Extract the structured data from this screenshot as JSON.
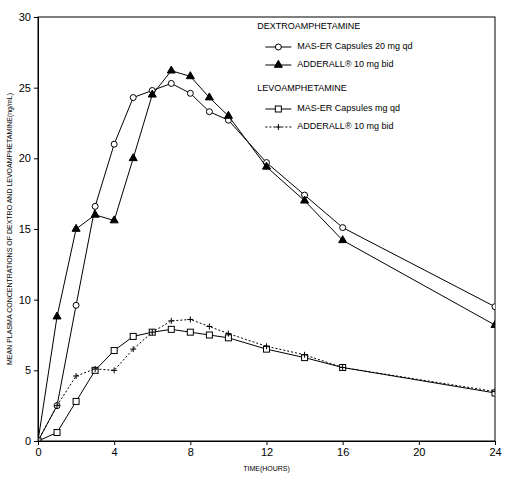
{
  "chart_data": {
    "type": "line",
    "x_label": "TIME(HOURS)",
    "y_label": "MEAN PLASMA CONCENTRATIONS OF DEXTRO AND LEVOAMPHETAMINE(ng/mL)",
    "x": [
      0,
      1,
      2,
      3,
      4,
      5,
      6,
      7,
      8,
      9,
      10,
      12,
      14,
      16,
      24
    ],
    "xlim": [
      0,
      24
    ],
    "xticks": [
      0,
      4,
      8,
      12,
      16,
      20,
      24
    ],
    "ylim": [
      0,
      30
    ],
    "yticks": [
      0,
      5,
      10,
      15,
      20,
      25,
      30
    ],
    "grid": false,
    "legend": "top-right",
    "series": [
      {
        "name": "MAS-ER Capsules 20 mg qd",
        "group": "DEXTROAMPHETAMINE",
        "color": "#000000",
        "marker": "circle",
        "line_style": "solid",
        "values": [
          0,
          2.5,
          9.6,
          16.6,
          21,
          24.3,
          24.8,
          25.3,
          24.6,
          23.3,
          22.7,
          19.7,
          17.4,
          15.1,
          9.5
        ]
      },
      {
        "name": "ADDERALL® 10 mg bid",
        "group": "DEXTROAMPHETAMINE",
        "color": "#000000",
        "marker": "triangle",
        "line_style": "solid",
        "values": [
          0,
          8.8,
          15,
          16,
          15.6,
          20,
          24.5,
          26.2,
          25.8,
          24.3,
          23,
          19.4,
          17,
          14.2,
          8.2
        ]
      },
      {
        "name": "MAS-ER Capsules mg qd",
        "group": "LEVOAMPHETAMINE",
        "color": "#000000",
        "marker": "square",
        "line_style": "solid",
        "values": [
          0,
          0.6,
          2.8,
          5,
          6.4,
          7.4,
          7.7,
          7.9,
          7.7,
          7.5,
          7.3,
          6.5,
          5.9,
          5.2,
          3.4
        ]
      },
      {
        "name": "ADDERALL® 10 mg bid",
        "group": "LEVOAMPHETAMINE",
        "color": "#000000",
        "marker": "plus",
        "line_style": "dotted",
        "values": [
          0,
          2.5,
          4.6,
          5.1,
          5,
          6.5,
          7.7,
          8.5,
          8.6,
          8.1,
          7.6,
          6.7,
          6.1,
          5.2,
          3.5
        ]
      }
    ]
  }
}
